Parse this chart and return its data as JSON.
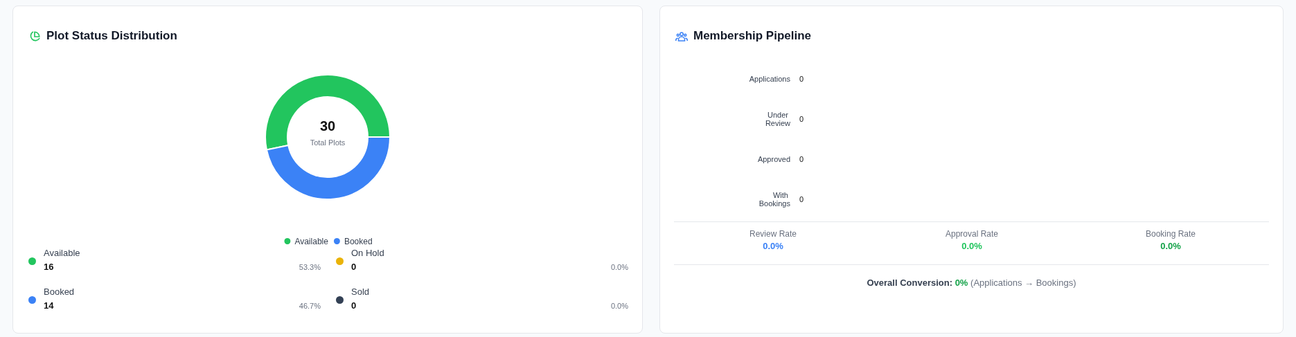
{
  "chart_data": [
    {
      "type": "donut",
      "title": "Plot Status Distribution",
      "categories": [
        "Available",
        "Booked",
        "On Hold",
        "Sold"
      ],
      "values": [
        53.3,
        46.7,
        0,
        0
      ],
      "colors": [
        "#22c55e",
        "#3b82f6",
        "#eab308",
        "#334155"
      ],
      "legend": "bottom",
      "annotations": [
        "30",
        "Total Plots",
        "16",
        "53.3%",
        "14",
        "46.7%",
        "0",
        "0.0%",
        "0",
        "0.0%"
      ]
    },
    {
      "type": "other",
      "title": "Membership Pipeline",
      "categories": [
        "Applications",
        "Under Review",
        "Approved",
        "With Bookings"
      ],
      "values": [
        0,
        0,
        0,
        0
      ],
      "data_labels": true,
      "annotations": [
        "Review Rate",
        "0.0%",
        "Approval Rate",
        "0.0%",
        "Booking Rate",
        "0.0%",
        "Overall Conversion:",
        "0%",
        "(Applications → Bookings)"
      ]
    }
  ]
}
